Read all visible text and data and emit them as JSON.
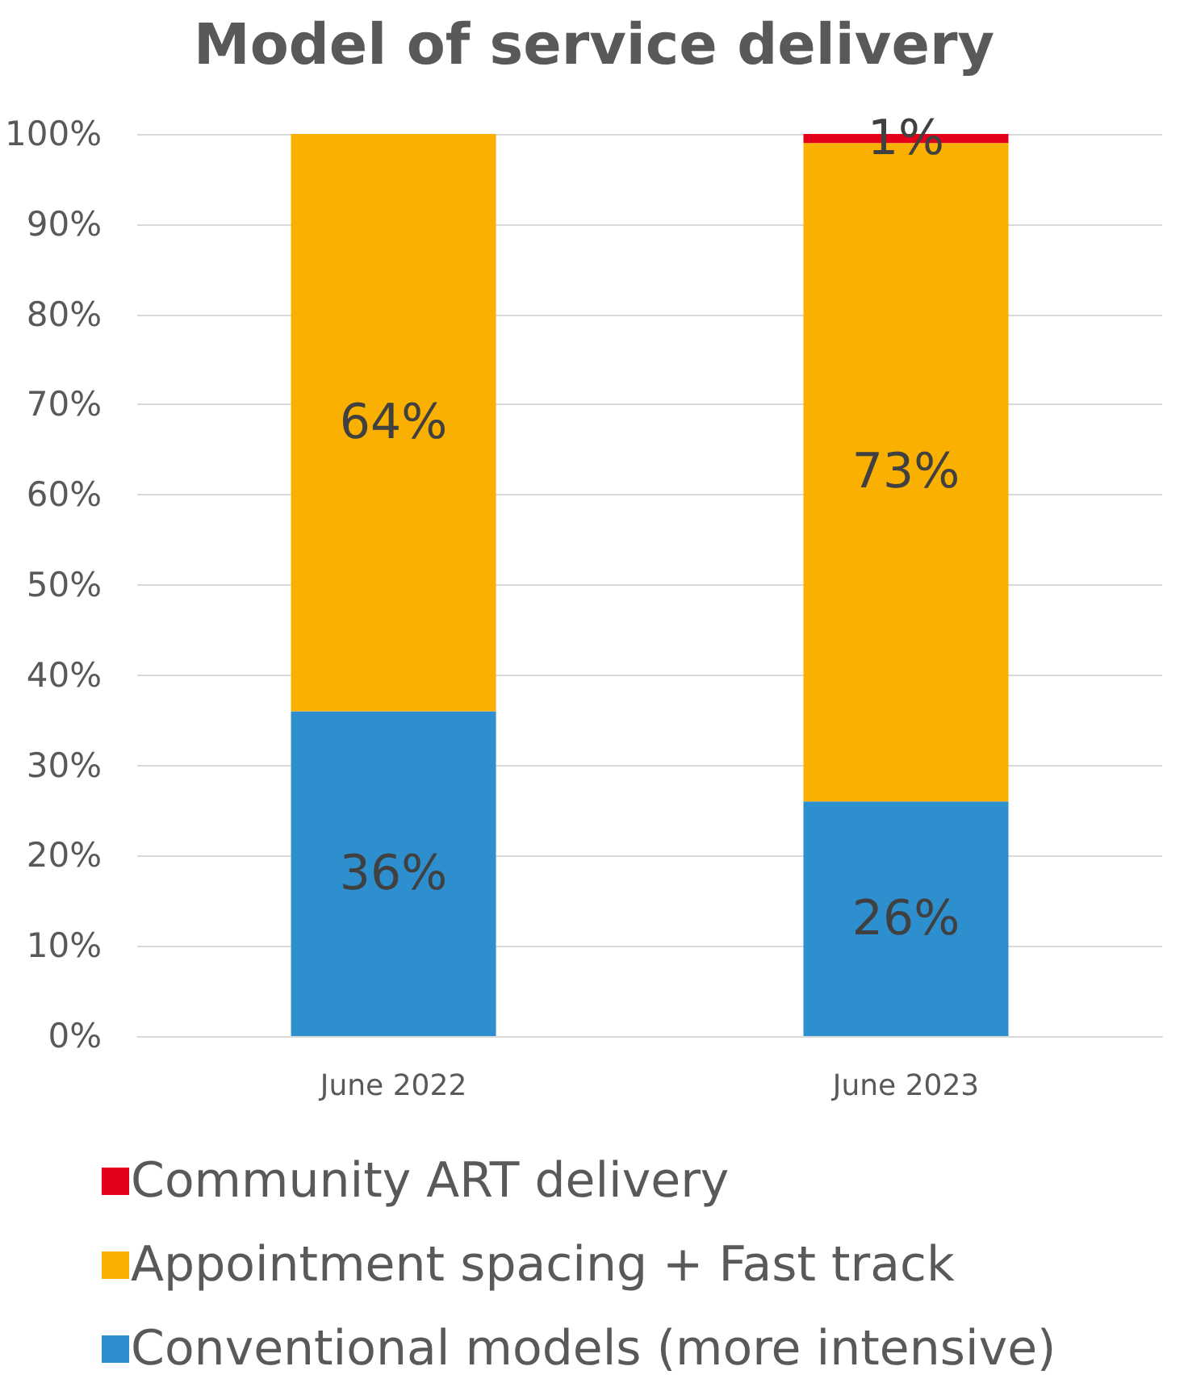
{
  "chart_data": {
    "type": "bar",
    "title": "Model of service delivery",
    "categories": [
      "June 2022",
      "June 2023"
    ],
    "stacked": true,
    "series": [
      {
        "name": "Conventional models (more intensive)",
        "color": "#2e8fce",
        "values": [
          36,
          26
        ],
        "value_labels": [
          "36%",
          "26%"
        ]
      },
      {
        "name": "Appointment spacing + Fast track",
        "color": "#f9b000",
        "values": [
          64,
          73
        ],
        "value_labels": [
          "64%",
          "73%"
        ]
      },
      {
        "name": "Community ART delivery",
        "color": "#e2001a",
        "values": [
          null,
          1
        ],
        "value_labels": [
          null,
          "1%"
        ]
      }
    ],
    "ylim": [
      0,
      100
    ],
    "yticks": [
      {
        "value": 0,
        "label": "0%"
      },
      {
        "value": 10,
        "label": "10%"
      },
      {
        "value": 20,
        "label": "20%"
      },
      {
        "value": 30,
        "label": "30%"
      },
      {
        "value": 40,
        "label": "40%"
      },
      {
        "value": 50,
        "label": "50%"
      },
      {
        "value": 60,
        "label": "60%"
      },
      {
        "value": 70,
        "label": "70%"
      },
      {
        "value": 80,
        "label": "80%"
      },
      {
        "value": 90,
        "label": "90%"
      },
      {
        "value": 100,
        "label": "100%"
      }
    ],
    "grid": "y",
    "legend": "bottom"
  }
}
